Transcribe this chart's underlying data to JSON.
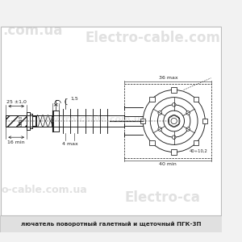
{
  "bg_color": "#f2f2f2",
  "border_color": "#bbbbbb",
  "drawing_color": "#1a1a1a",
  "dim_color": "#222222",
  "watermark_color": "#b8b8b8",
  "title_bar_color": "#e0e0e0",
  "title_text": "лючатель поворотный галетный и щеточный ПГК-3П",
  "wm_top_left": ".com.ua",
  "wm_top_right": "Electro-cable.com",
  "wm_bot_left": "o-cable.com.ua",
  "wm_bot_right": "Electro-ca",
  "wm_mid": "electro-cable.com.ua"
}
